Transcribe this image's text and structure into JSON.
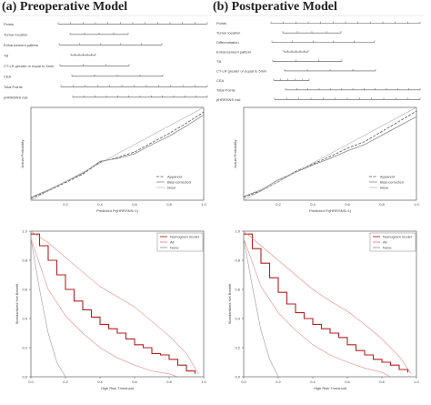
{
  "panels": [
    {
      "label": "(a)",
      "title": "Preoperative Model"
    },
    {
      "label": "(b)",
      "title": "Postperative Model"
    }
  ],
  "colors": {
    "dca_model": "#b22222",
    "dca_all": "#e08a8a",
    "dca_none": "#999999",
    "calib_apparent": "#555555",
    "calib_bias": "#888888",
    "calib_ideal": "#aaaaaa"
  },
  "chart_data": [
    {
      "type": "nomogram",
      "panel": "a",
      "variables": [
        "Points",
        "Tumor location",
        "Enhancement pattern",
        "TB",
        "CT-LR greater or equal to 5mm",
        "CEA",
        "Total Points",
        "pHRRSNS risk"
      ]
    },
    {
      "type": "nomogram",
      "panel": "b",
      "variables": [
        "Points",
        "Tumor location",
        "Differentiation",
        "Enhancement pattern",
        "TB",
        "CT-LR greater or equal to 5mm",
        "CEA",
        "Total Points",
        "pHRRSNS risk"
      ]
    },
    {
      "type": "line",
      "panel": "a",
      "chart": "calibration",
      "xlabel": "Predicted Pr(HRRSNS=1)",
      "ylabel": "Actual Probability",
      "xlim": [
        0.0,
        1.0
      ],
      "x_ticks": [
        "0.2",
        "0.4",
        "0.6",
        "0.8",
        "1.0"
      ],
      "ylim": [
        0.0,
        1.0
      ],
      "legend": [
        "Apparent",
        "Bias-corrected",
        "Ideal"
      ],
      "series": [
        {
          "name": "Apparent",
          "x": [
            0.0,
            0.1,
            0.2,
            0.3,
            0.4,
            0.5,
            0.6,
            0.7,
            0.8,
            0.9,
            1.0
          ],
          "y": [
            0.02,
            0.1,
            0.19,
            0.28,
            0.41,
            0.46,
            0.52,
            0.62,
            0.72,
            0.83,
            0.95
          ]
        },
        {
          "name": "Bias-corrected",
          "x": [
            0.0,
            0.1,
            0.2,
            0.3,
            0.4,
            0.5,
            0.6,
            0.7,
            0.8,
            0.9,
            1.0
          ],
          "y": [
            0.03,
            0.11,
            0.2,
            0.29,
            0.42,
            0.45,
            0.5,
            0.6,
            0.69,
            0.8,
            0.92
          ]
        },
        {
          "name": "Ideal",
          "x": [
            0.0,
            1.0
          ],
          "y": [
            0.0,
            1.0
          ]
        }
      ]
    },
    {
      "type": "line",
      "panel": "b",
      "chart": "calibration",
      "xlabel": "Predicted Pr(HRRSNS=1)",
      "ylabel": "Actual Probability",
      "xlim": [
        0.0,
        1.0
      ],
      "x_ticks": [
        "0.2",
        "0.4",
        "0.6",
        "0.8",
        "1.0"
      ],
      "ylim": [
        0.0,
        1.0
      ],
      "legend": [
        "Apparent",
        "Bias-corrected",
        "Ideal"
      ],
      "series": [
        {
          "name": "Apparent",
          "x": [
            0.0,
            0.1,
            0.2,
            0.3,
            0.4,
            0.5,
            0.6,
            0.7,
            0.8,
            0.9,
            1.0
          ],
          "y": [
            0.03,
            0.1,
            0.2,
            0.31,
            0.39,
            0.47,
            0.56,
            0.63,
            0.74,
            0.85,
            0.96
          ]
        },
        {
          "name": "Bias-corrected",
          "x": [
            0.0,
            0.1,
            0.2,
            0.3,
            0.4,
            0.5,
            0.6,
            0.7,
            0.8,
            0.9,
            1.0
          ],
          "y": [
            0.04,
            0.11,
            0.22,
            0.3,
            0.38,
            0.45,
            0.53,
            0.6,
            0.7,
            0.8,
            0.9
          ]
        },
        {
          "name": "Ideal",
          "x": [
            0.0,
            1.0
          ],
          "y": [
            0.0,
            1.0
          ]
        }
      ]
    },
    {
      "type": "line",
      "panel": "a",
      "chart": "decision-curve",
      "xlabel": "High Risk Threshold",
      "ylabel": "Standardized Net Benefit",
      "xlim": [
        0.0,
        1.0
      ],
      "ylim": [
        0.0,
        1.0
      ],
      "x_ticks": [
        "0.0",
        "0.2",
        "0.4",
        "0.6",
        "0.8",
        "1.0"
      ],
      "y_ticks": [
        "0.0",
        "0.2",
        "0.4",
        "0.6",
        "0.8",
        "1.0"
      ],
      "legend": [
        "Nomogram model",
        "All",
        "None"
      ],
      "series": [
        {
          "name": "Nomogram model",
          "x": [
            0.0,
            0.05,
            0.1,
            0.15,
            0.2,
            0.25,
            0.3,
            0.35,
            0.4,
            0.45,
            0.5,
            0.55,
            0.6,
            0.65,
            0.7,
            0.75,
            0.8,
            0.85,
            0.9,
            0.95
          ],
          "y": [
            0.98,
            0.9,
            0.8,
            0.7,
            0.6,
            0.52,
            0.46,
            0.41,
            0.36,
            0.33,
            0.3,
            0.26,
            0.22,
            0.2,
            0.16,
            0.15,
            0.12,
            0.08,
            0.04,
            0.02
          ]
        },
        {
          "name": "Nomogram model upper",
          "x": [
            0.0,
            0.1,
            0.2,
            0.3,
            0.4,
            0.5,
            0.6,
            0.7,
            0.8,
            0.9,
            0.97
          ],
          "y": [
            1.0,
            0.92,
            0.82,
            0.72,
            0.62,
            0.55,
            0.48,
            0.38,
            0.28,
            0.16,
            0.02
          ]
        },
        {
          "name": "Nomogram model lower",
          "x": [
            0.0,
            0.1,
            0.2,
            0.3,
            0.4,
            0.5,
            0.6,
            0.7,
            0.8,
            0.85
          ],
          "y": [
            0.95,
            0.6,
            0.42,
            0.3,
            0.2,
            0.13,
            0.08,
            0.04,
            0.02,
            0.0
          ]
        },
        {
          "name": "All",
          "x": [
            0.0,
            0.05,
            0.1,
            0.15,
            0.2
          ],
          "y": [
            0.95,
            0.6,
            0.3,
            0.1,
            0.0
          ]
        },
        {
          "name": "None",
          "x": [
            0.0,
            1.0
          ],
          "y": [
            0.0,
            0.0
          ]
        }
      ]
    },
    {
      "type": "line",
      "panel": "b",
      "chart": "decision-curve",
      "xlabel": "High Risk Threshold",
      "ylabel": "Standardized Net Benefit",
      "xlim": [
        0.0,
        1.0
      ],
      "ylim": [
        0.0,
        1.0
      ],
      "x_ticks": [
        "0.0",
        "0.2",
        "0.4",
        "0.6",
        "0.8",
        "1.0"
      ],
      "y_ticks": [
        "0.0",
        "0.2",
        "0.4",
        "0.6",
        "0.8",
        "1.0"
      ],
      "legend": [
        "Nomogram model",
        "All",
        "None"
      ],
      "series": [
        {
          "name": "Nomogram model",
          "x": [
            0.0,
            0.05,
            0.1,
            0.15,
            0.2,
            0.25,
            0.3,
            0.35,
            0.4,
            0.45,
            0.5,
            0.55,
            0.6,
            0.65,
            0.7,
            0.75,
            0.8,
            0.85,
            0.9,
            0.95
          ],
          "y": [
            0.98,
            0.88,
            0.78,
            0.68,
            0.58,
            0.5,
            0.44,
            0.4,
            0.36,
            0.33,
            0.3,
            0.27,
            0.22,
            0.18,
            0.15,
            0.12,
            0.1,
            0.08,
            0.05,
            0.03
          ]
        },
        {
          "name": "Nomogram model upper",
          "x": [
            0.0,
            0.1,
            0.2,
            0.3,
            0.4,
            0.5,
            0.6,
            0.7,
            0.8,
            0.9,
            0.97
          ],
          "y": [
            1.0,
            0.9,
            0.8,
            0.7,
            0.6,
            0.52,
            0.45,
            0.36,
            0.26,
            0.14,
            0.02
          ]
        },
        {
          "name": "Nomogram model lower",
          "x": [
            0.0,
            0.1,
            0.2,
            0.3,
            0.4,
            0.5,
            0.6,
            0.7,
            0.8,
            0.85
          ],
          "y": [
            0.95,
            0.62,
            0.44,
            0.32,
            0.22,
            0.15,
            0.1,
            0.06,
            0.03,
            0.0
          ]
        },
        {
          "name": "All",
          "x": [
            0.0,
            0.05,
            0.1,
            0.15,
            0.2
          ],
          "y": [
            0.95,
            0.62,
            0.32,
            0.12,
            0.0
          ]
        },
        {
          "name": "None",
          "x": [
            0.0,
            1.0
          ],
          "y": [
            0.0,
            0.0
          ]
        }
      ]
    }
  ]
}
